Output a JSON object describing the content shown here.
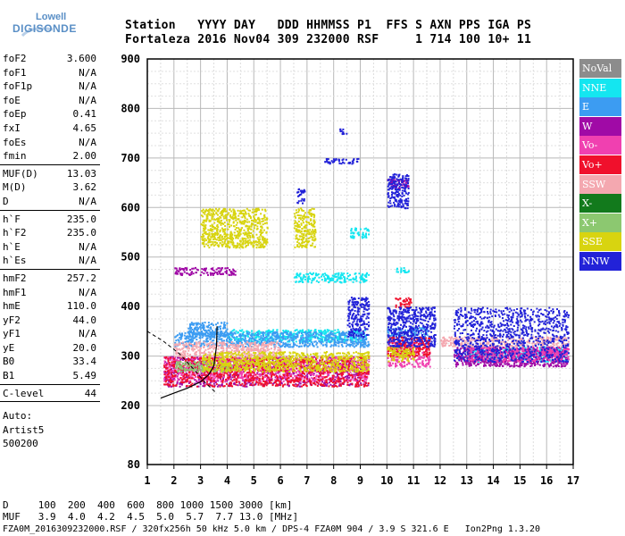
{
  "logo": {
    "line1": "Lowell",
    "line2": "DIGISONDE"
  },
  "header": {
    "line1": "Station   YYYY DAY   DDD HHMMSS P1  FFS S AXN PPS IGA PS",
    "line2": "Fortaleza 2016 Nov04 309 232000 RSF     1 714 100 10+ 11"
  },
  "params": {
    "group1": [
      {
        "k": "foF2",
        "v": "3.600"
      },
      {
        "k": "foF1",
        "v": "N/A"
      },
      {
        "k": "foF1p",
        "v": "N/A"
      },
      {
        "k": "foE",
        "v": "N/A"
      },
      {
        "k": "foEp",
        "v": "0.41"
      },
      {
        "k": "fxI",
        "v": "4.65"
      },
      {
        "k": "foEs",
        "v": "N/A"
      },
      {
        "k": "fmin",
        "v": "2.00"
      }
    ],
    "group2": [
      {
        "k": "MUF(D)",
        "v": "13.03"
      },
      {
        "k": "M(D)",
        "v": "3.62"
      },
      {
        "k": "D",
        "v": "N/A"
      }
    ],
    "group3": [
      {
        "k": "h`F",
        "v": "235.0"
      },
      {
        "k": "h`F2",
        "v": "235.0"
      },
      {
        "k": "h`E",
        "v": "N/A"
      },
      {
        "k": "h`Es",
        "v": "N/A"
      }
    ],
    "group4": [
      {
        "k": "hmF2",
        "v": "257.2"
      },
      {
        "k": "hmF1",
        "v": "N/A"
      },
      {
        "k": "hmE",
        "v": "110.0"
      },
      {
        "k": "yF2",
        "v": "44.0"
      },
      {
        "k": "yF1",
        "v": "N/A"
      },
      {
        "k": "yE",
        "v": "20.0"
      },
      {
        "k": "B0",
        "v": "33.4"
      },
      {
        "k": "B1",
        "v": "5.49"
      }
    ],
    "group5": [
      {
        "k": "C-level",
        "v": "44"
      }
    ],
    "auto": [
      "Auto:",
      "Artist5",
      "500200"
    ]
  },
  "legend": [
    {
      "label": "NoVal",
      "color": "#8c8c8c",
      "text": "#ffffff"
    },
    {
      "label": "NNE",
      "color": "#14e6f0",
      "text": "#ffffff"
    },
    {
      "label": "E",
      "color": "#3c9cf2",
      "text": "#ffffff"
    },
    {
      "label": "W",
      "color": "#a00aa6",
      "text": "#ffffff"
    },
    {
      "label": "Vo-",
      "color": "#f040b0",
      "text": "#ffffff"
    },
    {
      "label": "Vo+",
      "color": "#f0102c",
      "text": "#ffffff"
    },
    {
      "label": "SSW",
      "color": "#f4a8b0",
      "text": "#ffffff"
    },
    {
      "label": "X-",
      "color": "#127a1c",
      "text": "#ffffff"
    },
    {
      "label": "X+",
      "color": "#8cc870",
      "text": "#ffffff"
    },
    {
      "label": "SSE",
      "color": "#d8d410",
      "text": "#ffffff"
    },
    {
      "label": "NNW",
      "color": "#2222d8",
      "text": "#ffffff"
    }
  ],
  "footer": {
    "line1": "D     100  200  400  600  800 1000 1500 3000 [km]",
    "line2": "MUF   3.9  4.0  4.2  4.5  5.0  5.7  7.7 13.0 [MHz]",
    "line3": "FZA0M_2016309232000.RSF / 320fx256h 50 kHz 5.0 km / DPS-4 FZA0M 904 / 3.9 S 321.6 E   Ion2Png 1.3.20"
  },
  "chart_data": {
    "type": "scatter",
    "title": "",
    "xlabel": "",
    "ylabel": "",
    "xlim": [
      1,
      17
    ],
    "ylim": [
      80,
      900
    ],
    "x_ticks": [
      1,
      2,
      3,
      4,
      5,
      6,
      7,
      8,
      9,
      10,
      11,
      12,
      13,
      14,
      15,
      16,
      17
    ],
    "y_ticks": [
      80,
      200,
      300,
      400,
      500,
      600,
      700,
      800,
      900
    ],
    "grid": true,
    "series": [
      {
        "name": "NNE",
        "clusters": [
          {
            "f": [
              4.0,
              9.2
            ],
            "h": [
              330,
              355
            ]
          },
          {
            "f": [
              6.5,
              9.3
            ],
            "h": [
              450,
              470
            ]
          },
          {
            "f": [
              8.6,
              9.3
            ],
            "h": [
              540,
              560
            ]
          },
          {
            "f": [
              10.3,
              10.8
            ],
            "h": [
              470,
              480
            ]
          },
          {
            "f": [
              13.0,
              16.8
            ],
            "h": [
              290,
              320
            ]
          }
        ]
      },
      {
        "name": "E",
        "clusters": [
          {
            "f": [
              2.0,
              9.3
            ],
            "h": [
              320,
              350
            ]
          },
          {
            "f": [
              2.5,
              4.0
            ],
            "h": [
              340,
              370
            ]
          },
          {
            "f": [
              10.0,
              11.5
            ],
            "h": [
              340,
              360
            ]
          }
        ]
      },
      {
        "name": "W",
        "clusters": [
          {
            "f": [
              1.6,
              9.3
            ],
            "h": [
              240,
              300
            ]
          },
          {
            "f": [
              2.0,
              4.3
            ],
            "h": [
              465,
              480
            ]
          },
          {
            "f": [
              12.5,
              16.8
            ],
            "h": [
              280,
              320
            ]
          },
          {
            "f": [
              10.0,
              10.8
            ],
            "h": [
              640,
              660
            ]
          }
        ]
      },
      {
        "name": "Vo-",
        "clusters": [
          {
            "f": [
              1.6,
              9.3
            ],
            "h": [
              250,
              300
            ]
          },
          {
            "f": [
              13.0,
              16.8
            ],
            "h": [
              290,
              320
            ]
          },
          {
            "f": [
              10.0,
              11.6
            ],
            "h": [
              280,
              330
            ]
          }
        ]
      },
      {
        "name": "Vo+",
        "clusters": [
          {
            "f": [
              1.6,
              9.3
            ],
            "h": [
              240,
              300
            ]
          },
          {
            "f": [
              10.0,
              11.6
            ],
            "h": [
              300,
              340
            ]
          },
          {
            "f": [
              10.3,
              10.9
            ],
            "h": [
              400,
              420
            ]
          }
        ]
      },
      {
        "name": "SSW",
        "clusters": [
          {
            "f": [
              2.0,
              6.0
            ],
            "h": [
              300,
              330
            ]
          },
          {
            "f": [
              12.0,
              16.8
            ],
            "h": [
              320,
              340
            ]
          }
        ]
      },
      {
        "name": "X+",
        "clusters": [
          {
            "f": [
              2.0,
              4.3
            ],
            "h": [
              270,
              290
            ]
          }
        ]
      },
      {
        "name": "SSE",
        "clusters": [
          {
            "f": [
              3.0,
              9.3
            ],
            "h": [
              270,
              310
            ]
          },
          {
            "f": [
              3.0,
              5.5
            ],
            "h": [
              520,
              600
            ]
          },
          {
            "f": [
              6.5,
              7.3
            ],
            "h": [
              520,
              600
            ]
          },
          {
            "f": [
              10.0,
              11.0
            ],
            "h": [
              290,
              320
            ]
          }
        ]
      },
      {
        "name": "NNW",
        "clusters": [
          {
            "f": [
              8.5,
              9.3
            ],
            "h": [
              340,
              420
            ]
          },
          {
            "f": [
              10.0,
              11.8
            ],
            "h": [
              320,
              400
            ]
          },
          {
            "f": [
              12.5,
              16.8
            ],
            "h": [
              290,
              400
            ]
          },
          {
            "f": [
              7.5,
              8.9
            ],
            "h": [
              690,
              700
            ]
          },
          {
            "f": [
              8.2,
              8.5
            ],
            "h": [
              750,
              760
            ]
          },
          {
            "f": [
              10.0,
              10.8
            ],
            "h": [
              600,
              670
            ]
          },
          {
            "f": [
              6.6,
              6.9
            ],
            "h": [
              610,
              640
            ]
          }
        ]
      }
    ],
    "traces": {
      "fitted_trace": [
        [
          1.5,
          215
        ],
        [
          2.0,
          225
        ],
        [
          2.5,
          235
        ],
        [
          3.0,
          248
        ],
        [
          3.3,
          262
        ],
        [
          3.5,
          280
        ],
        [
          3.6,
          320
        ],
        [
          3.62,
          360
        ]
      ],
      "dashed_profile": [
        [
          1.0,
          350
        ],
        [
          1.6,
          330
        ],
        [
          2.2,
          305
        ],
        [
          2.8,
          270
        ],
        [
          3.2,
          245
        ],
        [
          3.6,
          225
        ]
      ]
    }
  }
}
